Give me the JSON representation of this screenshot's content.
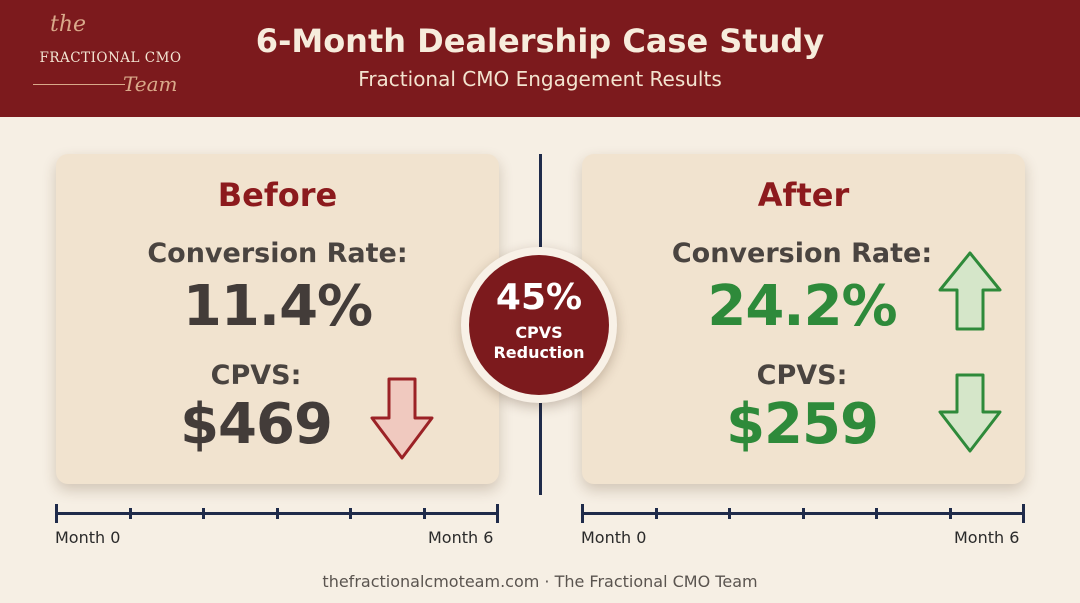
{
  "header": {
    "logo": {
      "the": "the",
      "main": "FRACTIONAL CMO",
      "team": "Team"
    },
    "title": "6-Month Dealership Case Study",
    "subtitle": "Fractional CMO Engagement Results"
  },
  "before": {
    "title": "Before",
    "conversion_label": "Conversion Rate:",
    "conversion_value": "11.4%",
    "cpvs_label": "CPVS:",
    "cpvs_value": "$469",
    "cpvs_arrow": "arrow-down-icon"
  },
  "after": {
    "title": "After",
    "conversion_label": "Conversion Rate:",
    "conversion_value": "24.2%",
    "conversion_arrow": "arrow-up-icon",
    "cpvs_label": "CPVS:",
    "cpvs_value": "$259",
    "cpvs_arrow": "arrow-down-icon"
  },
  "badge": {
    "value": "45%",
    "line1": "CPVS",
    "line2": "Reduction"
  },
  "timeline": {
    "start_label": "Month 0",
    "end_label": "Month 6",
    "months": 6
  },
  "footer": "thefractionalcmoteam.com · The Fractional CMO Team",
  "colors": {
    "brand_red": "#7c1a1d",
    "card_bg": "#f1e3cf",
    "page_bg": "#f6efe4",
    "navy": "#1f2b4a",
    "green": "#2e8a3a",
    "down_arrow_red": "#9b2226"
  }
}
